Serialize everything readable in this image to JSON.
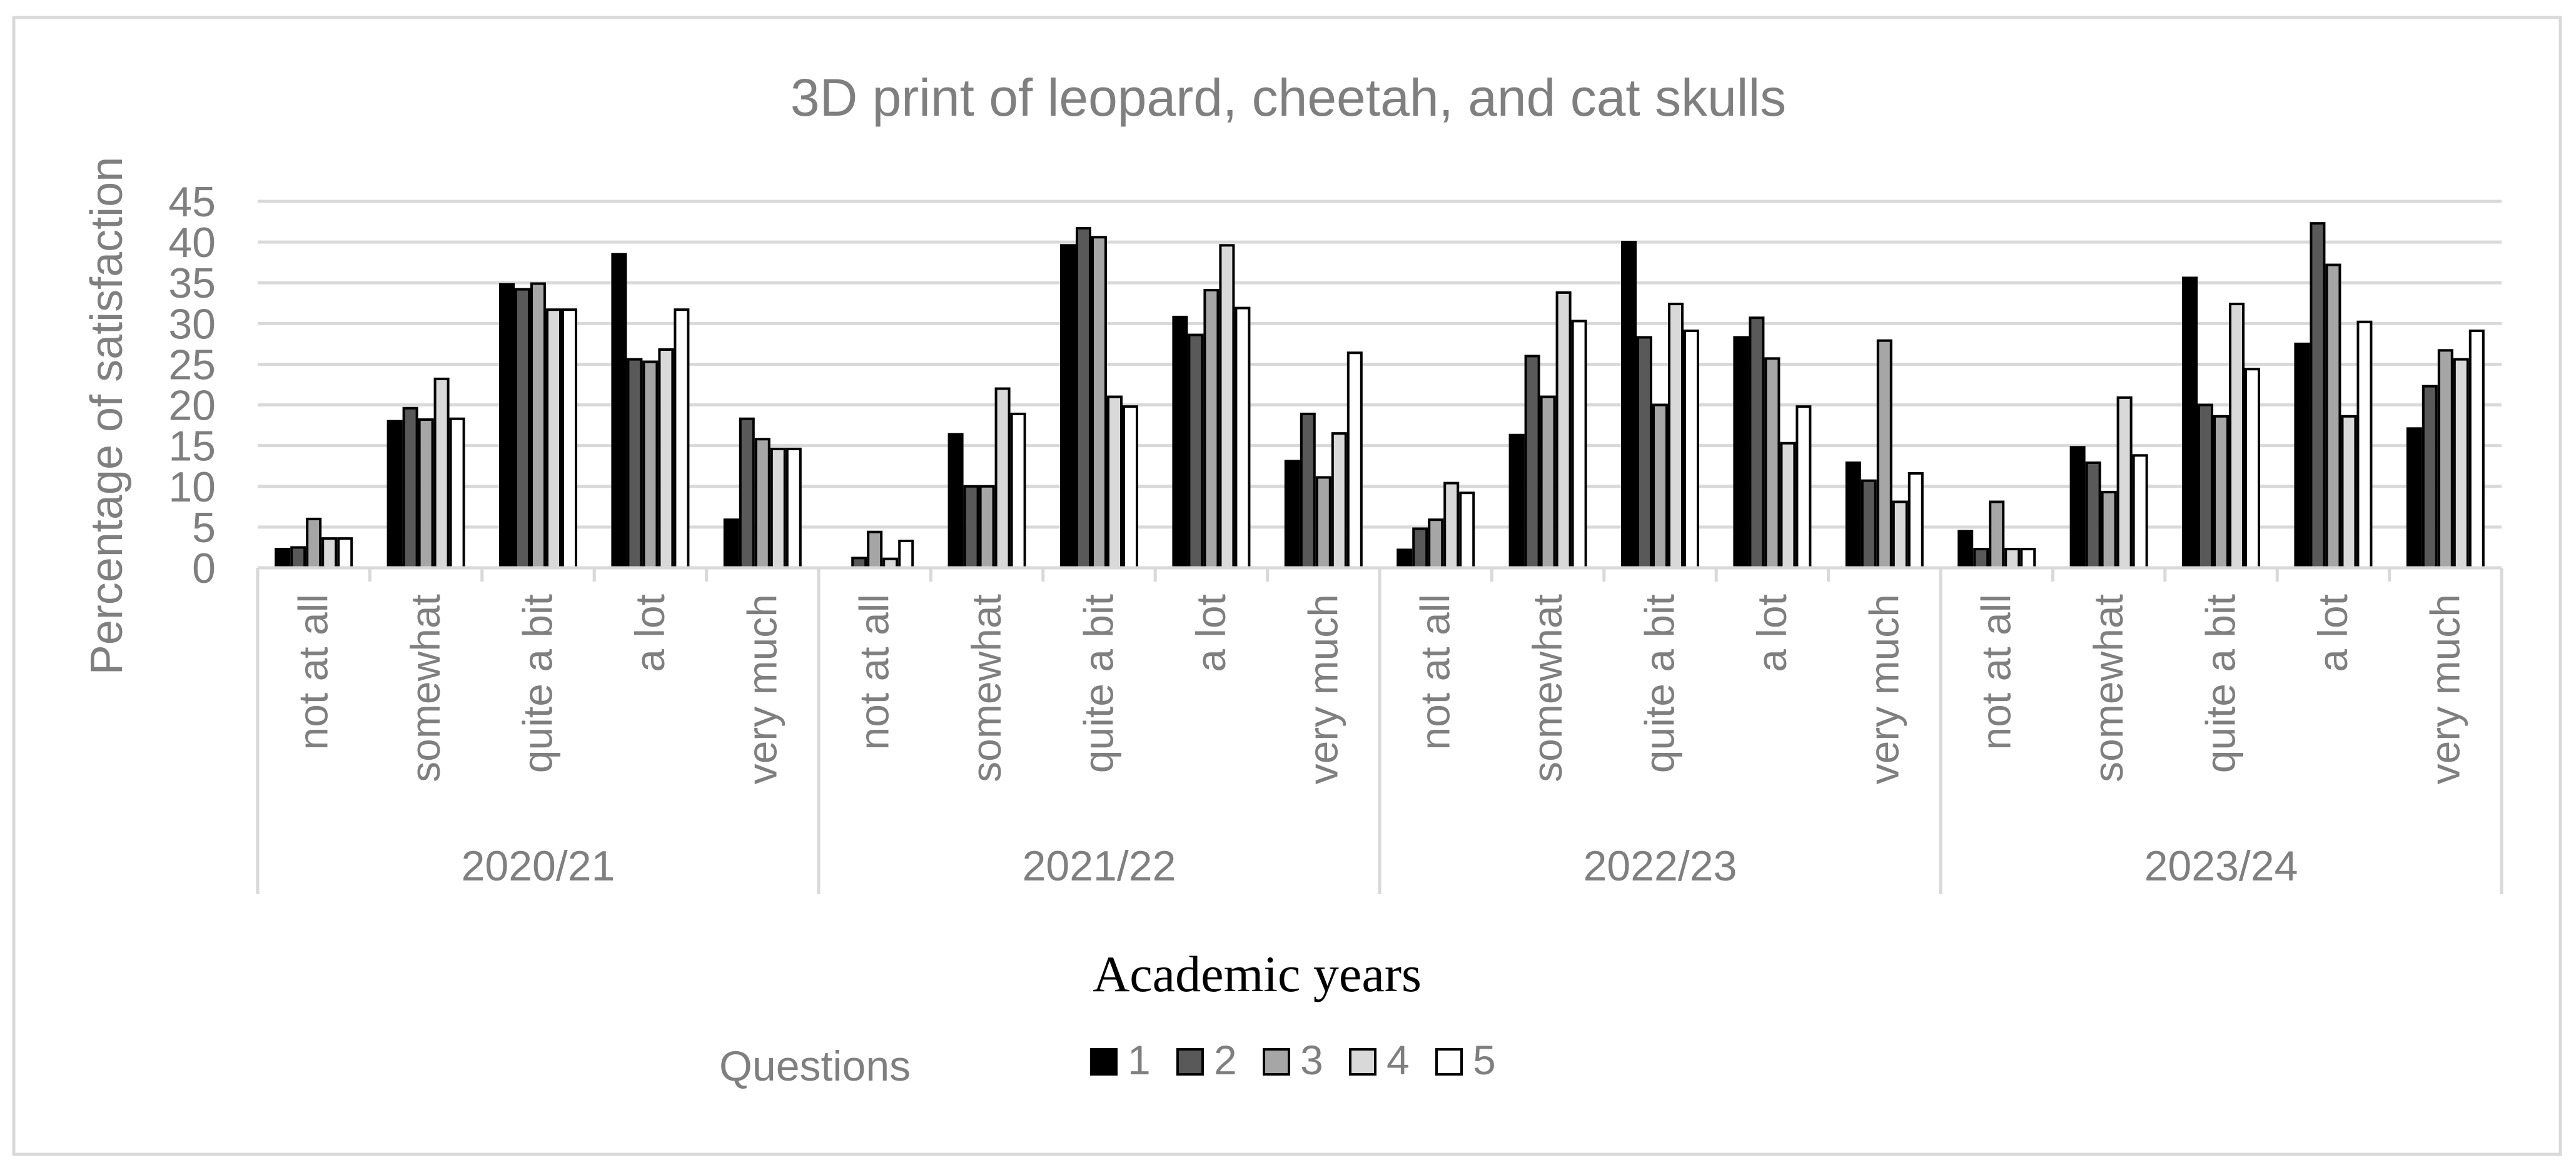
{
  "chart_data": {
    "type": "bar",
    "title": "3D print of leopard, cheetah, and cat skulls",
    "xlabel": "Academic years",
    "ylabel": "Percentage of satisfaction",
    "ylim": [
      0,
      45
    ],
    "yticks": [
      0,
      5,
      10,
      15,
      20,
      25,
      30,
      35,
      40,
      45
    ],
    "grid": true,
    "legend_title": "Questions",
    "legend_position": "bottom",
    "categories": [
      "not at all",
      "somewhat",
      "quite a bit",
      "a lot",
      "very much"
    ],
    "groups": [
      "2020/21",
      "2021/22",
      "2022/23",
      "2023/24"
    ],
    "series": [
      {
        "name": "1",
        "color": "#000000",
        "values": [
          [
            2.3,
            18,
            34.8,
            38.5,
            5.9
          ],
          [
            0,
            16.4,
            39.6,
            30.8,
            13.1
          ],
          [
            2.2,
            16.3,
            40,
            28.3,
            12.9
          ],
          [
            4.5,
            14.8,
            35.6,
            27.5,
            17.1
          ]
        ]
      },
      {
        "name": "2",
        "color": "#595959",
        "values": [
          [
            2.5,
            19.6,
            34.2,
            25.6,
            18.3
          ],
          [
            1.2,
            10,
            41.7,
            28.6,
            18.9
          ],
          [
            4.8,
            26,
            28.3,
            30.7,
            10.7
          ],
          [
            2.3,
            12.9,
            20,
            42.3,
            22.3
          ]
        ]
      },
      {
        "name": "3",
        "color": "#a6a6a6",
        "values": [
          [
            6,
            18.2,
            34.9,
            25.3,
            15.8
          ],
          [
            4.4,
            10,
            40.6,
            34.1,
            11.1
          ],
          [
            5.9,
            21,
            20,
            25.7,
            27.9
          ],
          [
            8.1,
            9.3,
            18.6,
            37.2,
            26.7
          ]
        ]
      },
      {
        "name": "4",
        "color": "#d9d9d9",
        "values": [
          [
            3.6,
            23.2,
            31.7,
            26.8,
            14.6
          ],
          [
            1.1,
            22,
            21,
            39.6,
            16.5
          ],
          [
            10.4,
            33.8,
            32.4,
            15.3,
            8.1
          ],
          [
            2.3,
            20.9,
            32.4,
            18.6,
            25.6
          ]
        ]
      },
      {
        "name": "5",
        "color": "#ffffff",
        "values": [
          [
            3.6,
            18.3,
            31.7,
            31.7,
            14.6
          ],
          [
            3.3,
            18.9,
            19.8,
            31.9,
            26.4
          ],
          [
            9.2,
            30.3,
            29.1,
            19.8,
            11.6
          ],
          [
            2.3,
            13.8,
            24.4,
            30.2,
            29.1
          ]
        ]
      }
    ]
  }
}
